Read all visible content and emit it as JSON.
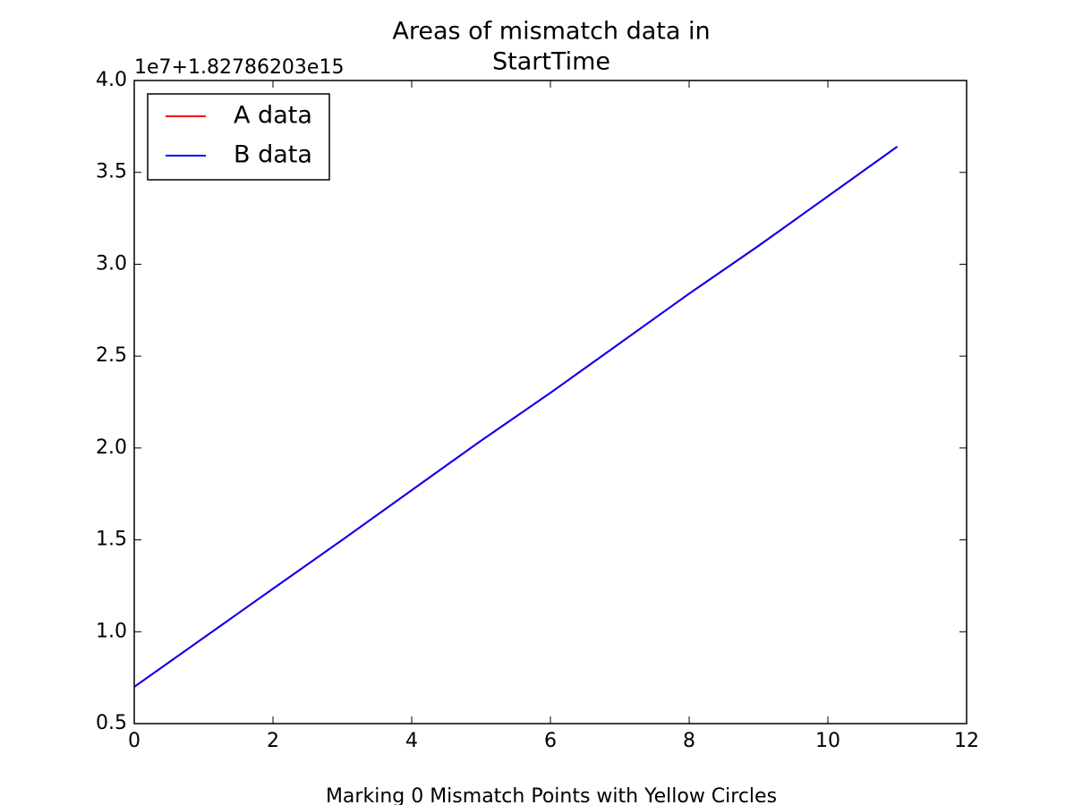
{
  "chart_data": {
    "type": "line",
    "title": [
      "Areas of mismatch data in",
      "StartTime"
    ],
    "xlabel": "Marking 0 Mismatch Points with Yellow Circles",
    "offset_label": "1e7+1.82786203e15",
    "x": [
      0,
      1,
      2,
      3,
      4,
      5,
      6,
      7,
      8,
      9,
      10,
      11
    ],
    "series": [
      {
        "name": "A data",
        "color": "#ff0000",
        "values": [
          0.7,
          0.967,
          1.234,
          1.5,
          1.77,
          2.04,
          2.3,
          2.57,
          2.84,
          3.1,
          3.37,
          3.64
        ]
      },
      {
        "name": "B data",
        "color": "#0000ff",
        "values": [
          0.7,
          0.967,
          1.234,
          1.5,
          1.77,
          2.04,
          2.3,
          2.57,
          2.84,
          3.1,
          3.37,
          3.64
        ]
      }
    ],
    "xlim": [
      0,
      12
    ],
    "xticks": [
      0,
      2,
      4,
      6,
      8,
      10,
      12
    ],
    "ylim": [
      0.5,
      4.0
    ],
    "yticks": [
      0.5,
      {
        "value": 1,
        "label": "1.0"
      },
      1.5,
      {
        "value": 2,
        "label": "2.0"
      },
      2.5,
      {
        "value": 3,
        "label": "3.0"
      },
      3.5,
      {
        "value": 4,
        "label": "4.0"
      }
    ],
    "grid": false,
    "legend": "upper left"
  }
}
